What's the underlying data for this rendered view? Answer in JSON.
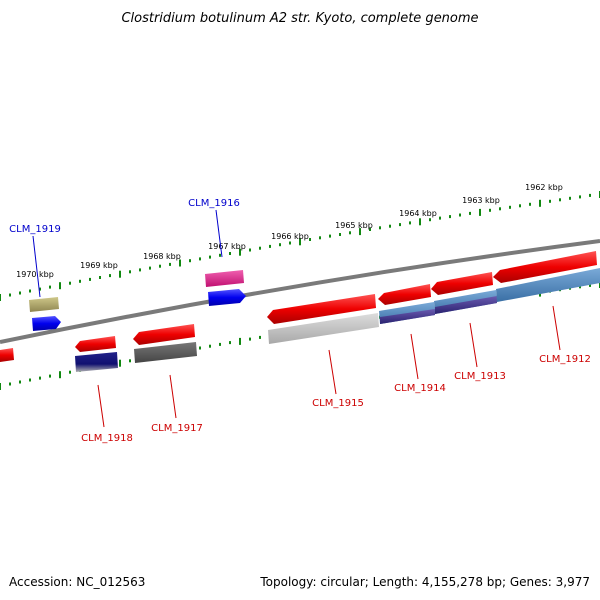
{
  "title": "Clostridium botulinum A2 str. Kyoto, complete genome",
  "footer": {
    "accession": "Accession: NC_012563",
    "summary": "Topology: circular; Length: 4,155,278 bp; Genes: 3,977"
  },
  "colors": {
    "backbone": "#808080",
    "tick": "#118811",
    "label_plus": "#0000cc",
    "label_minus": "#cc0000",
    "leader_plus": "#0000cc",
    "leader_minus": "#cc0000"
  },
  "kbp_labels": [
    "1970 kbp",
    "1969 kbp",
    "1968 kbp",
    "1967 kbp",
    "1966 kbp",
    "1965 kbp",
    "1964 kbp",
    "1963 kbp",
    "1962 kbp"
  ],
  "genes": [
    {
      "name": "CLM_1919",
      "strand": "plus",
      "color": "#0000ee",
      "secondary_color": "#b5ad6b"
    },
    {
      "name": "CLM_1916",
      "strand": "plus",
      "color": "#0000ee",
      "secondary_color": "#e0208c"
    },
    {
      "name": "CLM_1918",
      "strand": "minus",
      "color": "#ee0000",
      "secondary_color": "#101070"
    },
    {
      "name": "CLM_1917",
      "strand": "minus",
      "color": "#ee0000",
      "secondary_color": "#555555"
    },
    {
      "name": "CLM_1915",
      "strand": "minus",
      "color": "#ee0000",
      "secondary_color": "#b0b0b0"
    },
    {
      "name": "CLM_1914",
      "strand": "minus",
      "color": "#ee0000",
      "secondary_color": "#4a7fb5"
    },
    {
      "name": "CLM_1913",
      "strand": "minus",
      "color": "#ee0000",
      "secondary_color": "#4a7fb5"
    },
    {
      "name": "CLM_1912",
      "strand": "minus",
      "color": "#ee0000",
      "secondary_color": "#4a7fb5"
    },
    {
      "name": "",
      "strand": "minus",
      "color": "#ee0000",
      "secondary_color": ""
    }
  ]
}
